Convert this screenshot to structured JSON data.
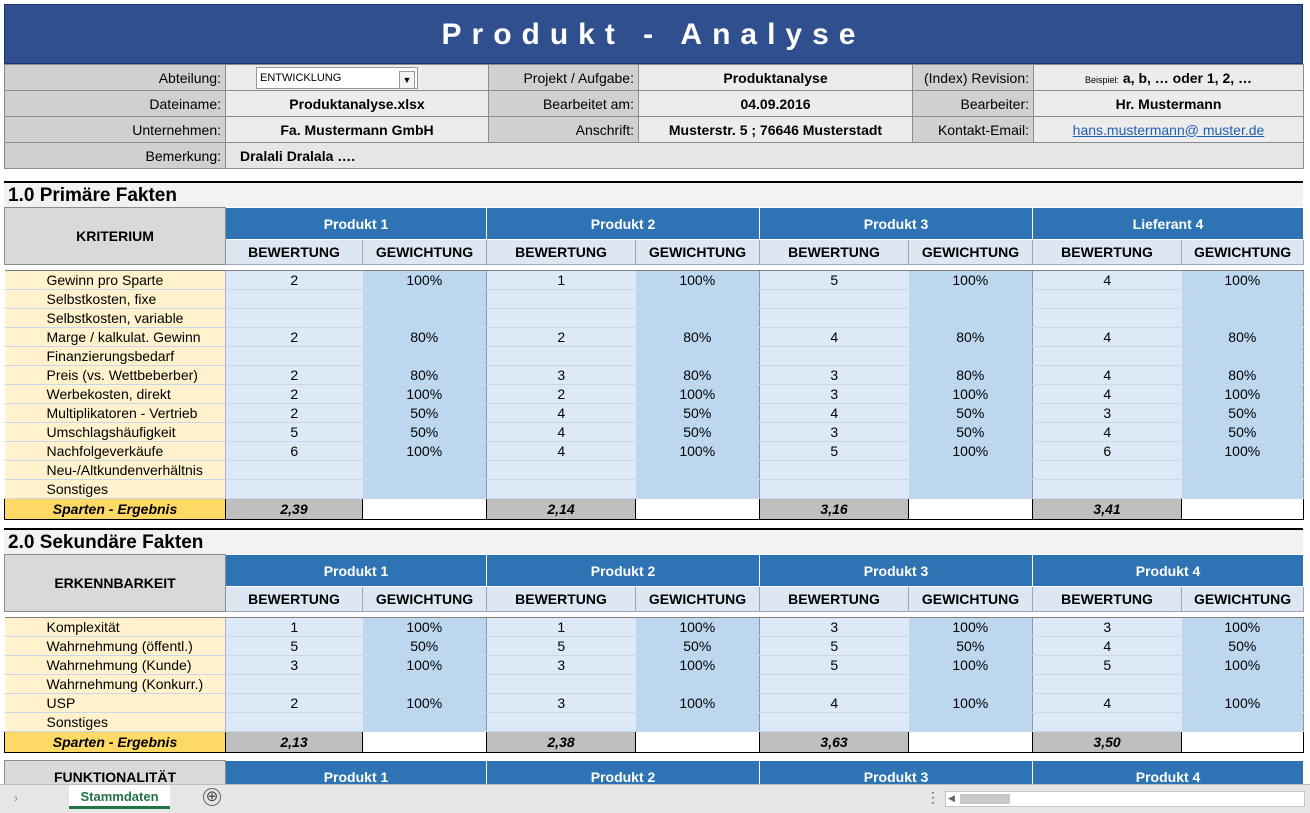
{
  "title": "Produkt - Analyse",
  "header": {
    "abteilung_label": "Abteilung:",
    "abteilung_value": "ENTWICKLUNG",
    "projekt_label": "Projekt / Aufgabe:",
    "projekt_value": "Produktanalyse",
    "revision_label": "(Index) Revision:",
    "revision_prefix": "Beispiel:",
    "revision_value": "a, b, … oder 1, 2, …",
    "dateiname_label": "Dateiname:",
    "dateiname_value": "Produktanalyse.xlsx",
    "bearbeitet_label": "Bearbeitet am:",
    "bearbeitet_value": "04.09.2016",
    "bearbeiter_label": "Bearbeiter:",
    "bearbeiter_value": "Hr. Mustermann",
    "unternehmen_label": "Unternehmen:",
    "unternehmen_value": "Fa. Mustermann GmbH",
    "anschrift_label": "Anschrift:",
    "anschrift_value": "Musterstr. 5 ; 76646 Musterstadt",
    "kontakt_label": "Kontakt-Email:",
    "kontakt_value": "hans.mustermann@ muster.de",
    "bemerkung_label": "Bemerkung:",
    "bemerkung_value": "Dralali Dralala …."
  },
  "sub_labels": {
    "bewertung": "BEWERTUNG",
    "gewichtung": "GEWICHTUNG"
  },
  "section1": {
    "title": "1.0 Primäre Fakten",
    "criterion": "KRITERIUM",
    "products": [
      "Produkt 1",
      "Produkt 2",
      "Produkt 3",
      "Lieferant 4"
    ],
    "rows": [
      {
        "label": "Gewinn pro Sparte",
        "cells": [
          "2",
          "100%",
          "1",
          "100%",
          "5",
          "100%",
          "4",
          "100%"
        ]
      },
      {
        "label": "Selbstkosten, fixe",
        "cells": [
          "",
          "",
          "",
          "",
          "",
          "",
          "",
          ""
        ]
      },
      {
        "label": "Selbstkosten, variable",
        "cells": [
          "",
          "",
          "",
          "",
          "",
          "",
          "",
          ""
        ]
      },
      {
        "label": "Marge / kalkulat. Gewinn",
        "cells": [
          "2",
          "80%",
          "2",
          "80%",
          "4",
          "80%",
          "4",
          "80%"
        ]
      },
      {
        "label": "Finanzierungsbedarf",
        "cells": [
          "",
          "",
          "",
          "",
          "",
          "",
          "",
          ""
        ]
      },
      {
        "label": "Preis (vs. Wettbeberber)",
        "cells": [
          "2",
          "80%",
          "3",
          "80%",
          "3",
          "80%",
          "4",
          "80%"
        ]
      },
      {
        "label": "Werbekosten, direkt",
        "cells": [
          "2",
          "100%",
          "2",
          "100%",
          "3",
          "100%",
          "4",
          "100%"
        ]
      },
      {
        "label": "Multiplikatoren - Vertrieb",
        "cells": [
          "2",
          "50%",
          "4",
          "50%",
          "4",
          "50%",
          "3",
          "50%"
        ]
      },
      {
        "label": "Umschlagshäufigkeit",
        "cells": [
          "5",
          "50%",
          "4",
          "50%",
          "3",
          "50%",
          "4",
          "50%"
        ]
      },
      {
        "label": "Nachfolgeverkäufe",
        "cells": [
          "6",
          "100%",
          "4",
          "100%",
          "5",
          "100%",
          "6",
          "100%"
        ]
      },
      {
        "label": "Neu-/Altkundenverhältnis",
        "cells": [
          "",
          "",
          "",
          "",
          "",
          "",
          "",
          ""
        ]
      },
      {
        "label": "Sonstiges",
        "cells": [
          "",
          "",
          "",
          "",
          "",
          "",
          "",
          ""
        ]
      }
    ],
    "result_label": "Sparten - Ergebnis",
    "results": [
      "2,39",
      "2,14",
      "3,16",
      "3,41"
    ]
  },
  "section2": {
    "title": "2.0 Sekundäre Fakten",
    "criterion": "ERKENNBARKEIT",
    "products": [
      "Produkt 1",
      "Produkt 2",
      "Produkt 3",
      "Produkt 4"
    ],
    "rows": [
      {
        "label": "Komplexität",
        "cells": [
          "1",
          "100%",
          "1",
          "100%",
          "3",
          "100%",
          "3",
          "100%"
        ]
      },
      {
        "label": "Wahrnehmung (öffentl.)",
        "cells": [
          "5",
          "50%",
          "5",
          "50%",
          "5",
          "50%",
          "4",
          "50%"
        ]
      },
      {
        "label": "Wahrnehmung (Kunde)",
        "cells": [
          "3",
          "100%",
          "3",
          "100%",
          "5",
          "100%",
          "5",
          "100%"
        ]
      },
      {
        "label": "Wahrnehmung (Konkurr.)",
        "cells": [
          "",
          "",
          "",
          "",
          "",
          "",
          "",
          ""
        ]
      },
      {
        "label": "USP",
        "cells": [
          "2",
          "100%",
          "3",
          "100%",
          "4",
          "100%",
          "4",
          "100%"
        ]
      },
      {
        "label": "Sonstiges",
        "cells": [
          "",
          "",
          "",
          "",
          "",
          "",
          "",
          ""
        ]
      }
    ],
    "result_label": "Sparten - Ergebnis",
    "results": [
      "2,13",
      "2,38",
      "3,63",
      "3,50"
    ]
  },
  "section3": {
    "criterion": "FUNKTIONALITÄT",
    "products": [
      "Produkt 1",
      "Produkt 2",
      "Produkt 3",
      "Produkt 4"
    ]
  },
  "statusbar": {
    "sheet_tab": "Stammdaten",
    "add_symbol": "⊕"
  }
}
